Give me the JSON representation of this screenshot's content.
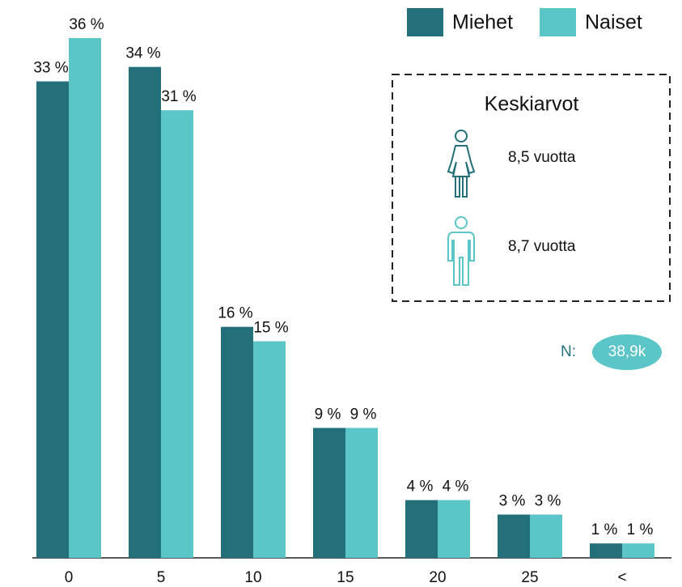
{
  "chart_data": {
    "type": "bar",
    "categories": [
      "0",
      "5",
      "10",
      "15",
      "20",
      "25",
      "<"
    ],
    "series": [
      {
        "name": "Miehet",
        "color": "#23707a",
        "values": [
          33,
          34,
          16,
          9,
          4,
          3,
          1
        ],
        "value_labels": [
          "33 %",
          "34 %",
          "16 %",
          "9 %",
          "4 %",
          "3 %",
          "1 %"
        ]
      },
      {
        "name": "Naiset",
        "color": "#5bc5c8",
        "values": [
          36,
          31,
          15,
          9,
          4,
          3,
          1
        ],
        "value_labels": [
          "36 %",
          "31 %",
          "15 %",
          "9 %",
          "4 %",
          "3 %",
          "1 %"
        ]
      }
    ],
    "ylim": [
      0,
      36
    ],
    "legend": "top-right",
    "averages": {
      "title": "Keskiarvot",
      "items": [
        "8,5 vuotta",
        "8,7 vuotta"
      ]
    },
    "n_label": "N:",
    "n_value": "38,9k"
  }
}
